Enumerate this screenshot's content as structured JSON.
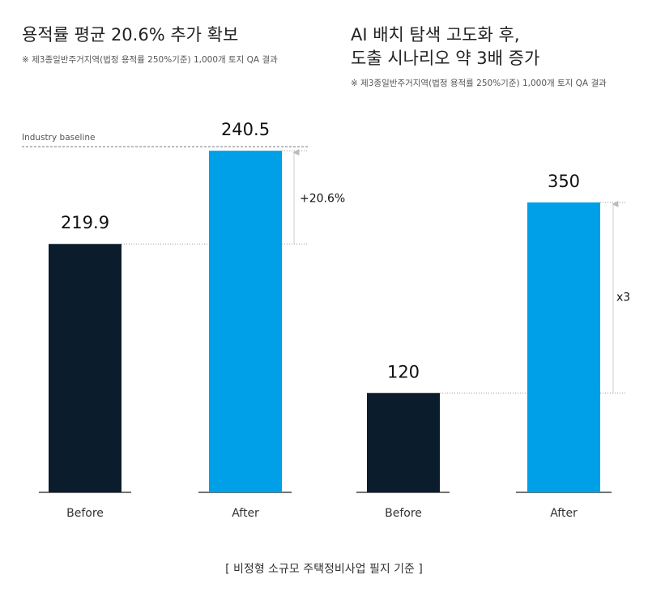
{
  "chart_data": [
    {
      "type": "bar",
      "title": [
        "용적률 평균 20.6% 추가 확보"
      ],
      "subtitle": "※ 제3종일반주거지역(법정 용적률 250%기준) 1,000개 토지 QA 결과",
      "categories": [
        "Before",
        "After"
      ],
      "values": [
        219.9,
        240.5
      ],
      "colors": [
        "#0b1c2c",
        "#00a0e9"
      ],
      "ylim": [
        165,
        245
      ],
      "change_label": "+20.6%",
      "baseline_label": "Industry baseline"
    },
    {
      "type": "bar",
      "title": [
        "AI 배치 탐색 고도화 후,",
        "도출 시나리오 약 3배 증가"
      ],
      "subtitle": "※ 제3종일반주거지역(법정 용적률 250%기준) 1,000개 토지 QA 결과",
      "categories": [
        "Before",
        "After"
      ],
      "values": [
        120,
        350
      ],
      "colors": [
        "#0b1c2c",
        "#00a0e9"
      ],
      "ylim": [
        0,
        350
      ],
      "change_label": "x3"
    }
  ],
  "footer": "[ 비정형 소규모 주택정비사업 필지 기준 ]"
}
